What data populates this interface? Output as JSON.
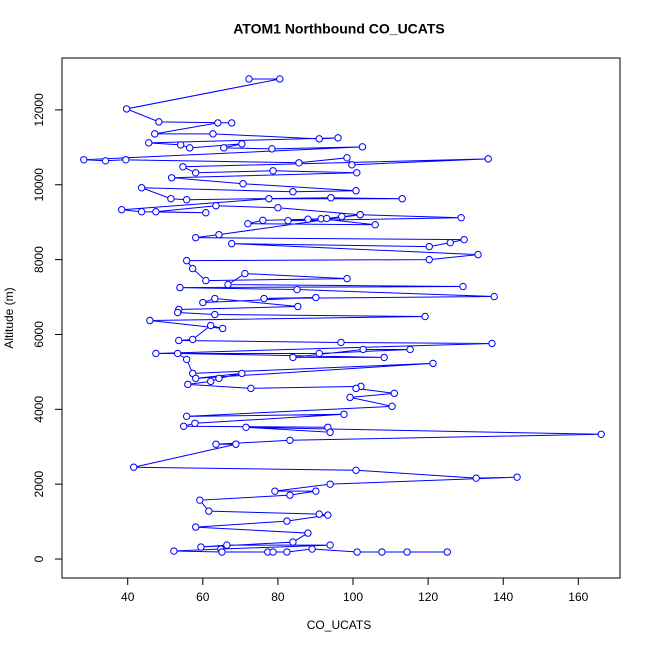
{
  "chart_data": {
    "type": "line",
    "title": "ATOM1 Northbound CO_UCATS",
    "x_label": "CO_UCATS",
    "y_label": "Altitude (m)",
    "xlim": [
      22.5,
      171.1
    ],
    "ylim": [
      -507,
      13387
    ],
    "xticks": [
      40,
      60,
      80,
      100,
      120,
      140,
      160
    ],
    "yticks": [
      0,
      2000,
      4000,
      6000,
      8000,
      10000,
      12000
    ],
    "markers": true,
    "series": [
      {
        "name": "CO_UCATS",
        "color": "#0000ff",
        "x": [
          72.3,
          80.5,
          39.7,
          48.3,
          67.7,
          64,
          47.2,
          62.7,
          91,
          96,
          45.6,
          54.1,
          56.5,
          70.4,
          65.6,
          78.4,
          102.5,
          28.3,
          34.1,
          39.5,
          85.6,
          98.4,
          99.7,
          136,
          54.7,
          58.1,
          78.7,
          101,
          51.7,
          70.7,
          100.8,
          84,
          43.7,
          51.5,
          55.7,
          94.1,
          113.1,
          77.6,
          38.4,
          43.7,
          60.8,
          47.5,
          63.5,
          80,
          101.9,
          128.8,
          82.7,
          91.5,
          105.9,
          72,
          76,
          88,
          93,
          97,
          101.9,
          64.3,
          58.1,
          129.6,
          125.9,
          120.3,
          67.7,
          133.3,
          120.3,
          55.7,
          57.3,
          60.8,
          98.4,
          71.2,
          66.7,
          129.3,
          53.9,
          85.1,
          137.6,
          76.3,
          90.1,
          60,
          63.2,
          85.3,
          53.6,
          53.3,
          63.2,
          119.2,
          45.9,
          65.3,
          62.1,
          57.3,
          53.6,
          96.8,
          137,
          47.5,
          91,
          115.2,
          102.7,
          84,
          108.3,
          53.3,
          55.7,
          57.3,
          121.3,
          58.1,
          70.4,
          64.3,
          62.1,
          56,
          72.8,
          102.1,
          100.8,
          111,
          99.2,
          110.4,
          55.7,
          97.6,
          57.9,
          54.9,
          93.3,
          93.9,
          71.5,
          166.1,
          83.2,
          63.5,
          68.8,
          41.6,
          100.8,
          132.8,
          143.7,
          93.9,
          79.2,
          90.1,
          83.2,
          59.2,
          61.6,
          91,
          93.3,
          82.4,
          58.1,
          88,
          84,
          59.5,
          66.4,
          93.9,
          64.8,
          52.3,
          65.1,
          77.3,
          78.7,
          82.4,
          89.1,
          101.1,
          107.7,
          114.4,
          125.1
        ],
        "values": [
          12827,
          12827,
          12027,
          11680,
          11653,
          11653,
          11360,
          11360,
          11227,
          11253,
          11120,
          11067,
          10987,
          11093,
          10987,
          10960,
          11013,
          10667,
          10640,
          10667,
          10587,
          10720,
          10533,
          10693,
          10480,
          10320,
          10373,
          10320,
          10187,
          10027,
          9840,
          9813,
          9920,
          9627,
          9600,
          9653,
          9627,
          9627,
          9333,
          9280,
          9253,
          9280,
          9440,
          9387,
          9200,
          9120,
          9040,
          9093,
          8933,
          8960,
          9050,
          9080,
          9100,
          9150,
          9200,
          8667,
          8587,
          8533,
          8453,
          8347,
          8427,
          8133,
          8000,
          7973,
          7760,
          7440,
          7493,
          7627,
          7333,
          7280,
          7253,
          7200,
          7013,
          6960,
          6987,
          6853,
          6960,
          6747,
          6667,
          6587,
          6533,
          6480,
          6373,
          6160,
          6240,
          5867,
          5840,
          5787,
          5760,
          5493,
          5493,
          5600,
          5600,
          5387,
          5387,
          5493,
          5333,
          4960,
          5227,
          4827,
          4960,
          4827,
          4747,
          4667,
          4560,
          4613,
          4560,
          4427,
          4320,
          4080,
          3813,
          3867,
          3627,
          3547,
          3520,
          3387,
          3520,
          3333,
          3173,
          3067,
          3067,
          2453,
          2373,
          2160,
          2187,
          2000,
          1813,
          1813,
          1707,
          1573,
          1280,
          1200,
          1173,
          1013,
          853,
          693,
          453,
          320,
          373,
          373,
          267,
          213,
          187,
          187,
          187,
          187,
          267,
          187,
          187,
          187,
          187
        ]
      }
    ]
  }
}
